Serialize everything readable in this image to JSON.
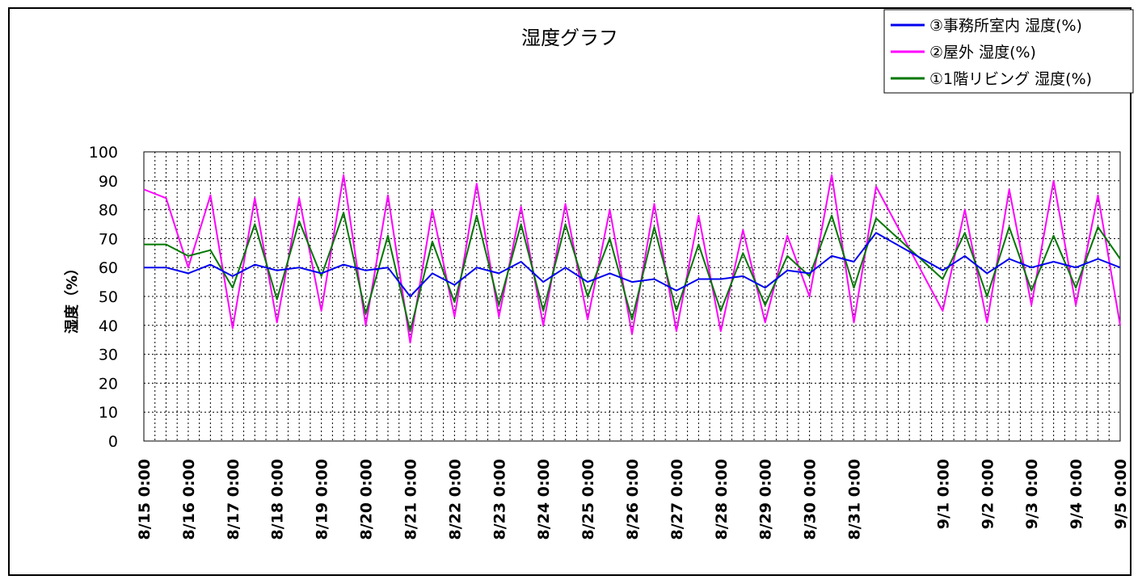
{
  "chart_data": {
    "type": "line",
    "title": "湿度グラフ",
    "xlabel": "",
    "ylabel": "湿度（%）",
    "ylim": [
      0,
      100
    ],
    "yticks": [
      0,
      10,
      20,
      30,
      40,
      50,
      60,
      70,
      80,
      90,
      100
    ],
    "xlim_days": [
      "8/15 0:00",
      "9/5 0:00"
    ],
    "x_tick_labels": [
      "8/15 0:00",
      "8/16 0:00",
      "8/17 0:00",
      "8/18 0:00",
      "8/19 0:00",
      "8/20 0:00",
      "8/21 0:00",
      "8/22 0:00",
      "8/23 0:00",
      "8/24 0:00",
      "8/25 0:00",
      "8/26 0:00",
      "8/27 0:00",
      "8/28 0:00",
      "8/29 0:00",
      "8/30 0:00",
      "8/31 0:00",
      "9/1 0:00",
      "9/2 0:00",
      "9/3 0:00",
      "9/4 0:00",
      "9/5 0:00"
    ],
    "grid": true,
    "legend_position": "top-right",
    "series": [
      {
        "name": "③事務所室内 湿度(%)",
        "color": "#0000ee",
        "points": [
          [
            "8/15 0:00",
            60
          ],
          [
            "8/15 12:00",
            60
          ],
          [
            "8/16 0:00",
            58
          ],
          [
            "8/16 12:00",
            61
          ],
          [
            "8/17 0:00",
            57
          ],
          [
            "8/17 12:00",
            61
          ],
          [
            "8/18 0:00",
            59
          ],
          [
            "8/18 12:00",
            60
          ],
          [
            "8/19 0:00",
            58
          ],
          [
            "8/19 12:00",
            61
          ],
          [
            "8/20 0:00",
            59
          ],
          [
            "8/20 12:00",
            60
          ],
          [
            "8/21 0:00",
            50
          ],
          [
            "8/21 12:00",
            58
          ],
          [
            "8/22 0:00",
            54
          ],
          [
            "8/22 12:00",
            60
          ],
          [
            "8/23 0:00",
            58
          ],
          [
            "8/23 12:00",
            62
          ],
          [
            "8/24 0:00",
            55
          ],
          [
            "8/24 12:00",
            60
          ],
          [
            "8/25 0:00",
            55
          ],
          [
            "8/25 12:00",
            58
          ],
          [
            "8/26 0:00",
            55
          ],
          [
            "8/26 12:00",
            56
          ],
          [
            "8/27 0:00",
            52
          ],
          [
            "8/27 12:00",
            56
          ],
          [
            "8/28 0:00",
            56
          ],
          [
            "8/28 12:00",
            57
          ],
          [
            "8/29 0:00",
            53
          ],
          [
            "8/29 12:00",
            59
          ],
          [
            "8/30 0:00",
            58
          ],
          [
            "8/30 12:00",
            64
          ],
          [
            "8/31 0:00",
            62
          ],
          [
            "8/31 12:00",
            72
          ],
          [
            "9/1 0:00",
            59
          ],
          [
            "9/1 12:00",
            64
          ],
          [
            "9/2 0:00",
            58
          ],
          [
            "9/2 12:00",
            63
          ],
          [
            "9/3 0:00",
            60
          ],
          [
            "9/3 12:00",
            62
          ],
          [
            "9/4 0:00",
            60
          ],
          [
            "9/4 12:00",
            63
          ],
          [
            "9/5 0:00",
            60
          ]
        ]
      },
      {
        "name": "②屋外 湿度(%)",
        "color": "#ff00ff",
        "points": [
          [
            "8/15 0:00",
            87
          ],
          [
            "8/15 12:00",
            84
          ],
          [
            "8/16 0:00",
            60
          ],
          [
            "8/16 12:00",
            85
          ],
          [
            "8/17 0:00",
            39
          ],
          [
            "8/17 12:00",
            84
          ],
          [
            "8/18 0:00",
            41
          ],
          [
            "8/18 12:00",
            84
          ],
          [
            "8/19 0:00",
            45
          ],
          [
            "8/19 12:00",
            92
          ],
          [
            "8/20 0:00",
            40
          ],
          [
            "8/20 12:00",
            85
          ],
          [
            "8/21 0:00",
            34
          ],
          [
            "8/21 12:00",
            80
          ],
          [
            "8/22 0:00",
            43
          ],
          [
            "8/22 12:00",
            89
          ],
          [
            "8/23 0:00",
            43
          ],
          [
            "8/23 12:00",
            81
          ],
          [
            "8/24 0:00",
            40
          ],
          [
            "8/24 12:00",
            82
          ],
          [
            "8/25 0:00",
            42
          ],
          [
            "8/25 12:00",
            80
          ],
          [
            "8/26 0:00",
            37
          ],
          [
            "8/26 12:00",
            82
          ],
          [
            "8/27 0:00",
            38
          ],
          [
            "8/27 12:00",
            78
          ],
          [
            "8/28 0:00",
            38
          ],
          [
            "8/28 12:00",
            73
          ],
          [
            "8/29 0:00",
            41
          ],
          [
            "8/29 12:00",
            71
          ],
          [
            "8/30 0:00",
            50
          ],
          [
            "8/30 12:00",
            92
          ],
          [
            "8/31 0:00",
            41
          ],
          [
            "8/31 12:00",
            88
          ],
          [
            "9/1 0:00",
            45
          ],
          [
            "9/1 12:00",
            80
          ],
          [
            "9/2 0:00",
            41
          ],
          [
            "9/2 12:00",
            87
          ],
          [
            "9/3 0:00",
            47
          ],
          [
            "9/3 12:00",
            90
          ],
          [
            "9/4 0:00",
            47
          ],
          [
            "9/4 12:00",
            85
          ],
          [
            "9/5 0:00",
            40
          ]
        ]
      },
      {
        "name": "①1階リビング 湿度(%)",
        "color": "#007700",
        "points": [
          [
            "8/15 0:00",
            68
          ],
          [
            "8/15 12:00",
            68
          ],
          [
            "8/16 0:00",
            64
          ],
          [
            "8/16 12:00",
            66
          ],
          [
            "8/17 0:00",
            53
          ],
          [
            "8/17 12:00",
            75
          ],
          [
            "8/18 0:00",
            49
          ],
          [
            "8/18 12:00",
            76
          ],
          [
            "8/19 0:00",
            57
          ],
          [
            "8/19 12:00",
            79
          ],
          [
            "8/20 0:00",
            44
          ],
          [
            "8/20 12:00",
            71
          ],
          [
            "8/21 0:00",
            38
          ],
          [
            "8/21 12:00",
            69
          ],
          [
            "8/22 0:00",
            48
          ],
          [
            "8/22 12:00",
            78
          ],
          [
            "8/23 0:00",
            47
          ],
          [
            "8/23 12:00",
            75
          ],
          [
            "8/24 0:00",
            45
          ],
          [
            "8/24 12:00",
            75
          ],
          [
            "8/25 0:00",
            50
          ],
          [
            "8/25 12:00",
            70
          ],
          [
            "8/26 0:00",
            42
          ],
          [
            "8/26 12:00",
            74
          ],
          [
            "8/27 0:00",
            45
          ],
          [
            "8/27 12:00",
            68
          ],
          [
            "8/28 0:00",
            45
          ],
          [
            "8/28 12:00",
            65
          ],
          [
            "8/29 0:00",
            47
          ],
          [
            "8/29 12:00",
            64
          ],
          [
            "8/30 0:00",
            57
          ],
          [
            "8/30 12:00",
            78
          ],
          [
            "8/31 0:00",
            53
          ],
          [
            "8/31 12:00",
            77
          ],
          [
            "9/1 0:00",
            56
          ],
          [
            "9/1 12:00",
            72
          ],
          [
            "9/2 0:00",
            50
          ],
          [
            "9/2 12:00",
            74
          ],
          [
            "9/3 0:00",
            52
          ],
          [
            "9/3 12:00",
            71
          ],
          [
            "9/4 0:00",
            53
          ],
          [
            "9/4 12:00",
            74
          ],
          [
            "9/5 0:00",
            63
          ]
        ]
      }
    ]
  }
}
